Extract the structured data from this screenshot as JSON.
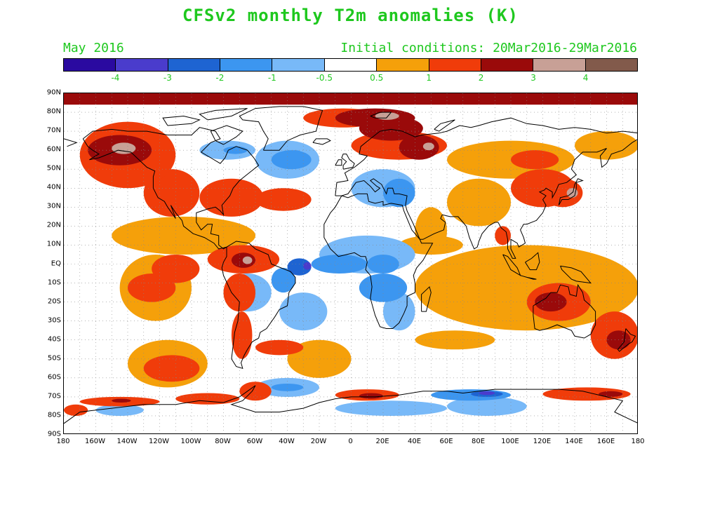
{
  "title": "CFSv2 monthly T2m anomalies (K)",
  "month": "May 2016",
  "initial_conditions": "Initial conditions: 20Mar2016-29Mar2016",
  "colorbar": {
    "colors": [
      "#2a0aa0",
      "#4a3ccc",
      "#1e64d2",
      "#3c96f0",
      "#78b9f8",
      "#ffffff",
      "#f5a00a",
      "#f03c0a",
      "#9a0a0a",
      "#c8a096",
      "#825a4b"
    ],
    "labels": [
      "-4",
      "-3",
      "-2",
      "-1",
      "-0.5",
      "0.5",
      "1",
      "2",
      "3",
      "4"
    ]
  },
  "lat_labels": [
    "90N",
    "80N",
    "70N",
    "60N",
    "50N",
    "40N",
    "30N",
    "20N",
    "10N",
    "EQ",
    "10S",
    "20S",
    "30S",
    "40S",
    "50S",
    "60S",
    "70S",
    "80S",
    "90S"
  ],
  "lon_labels": [
    "180",
    "160W",
    "140W",
    "120W",
    "100W",
    "80W",
    "60W",
    "40W",
    "20W",
    "0",
    "20E",
    "40E",
    "60E",
    "80E",
    "100E",
    "120E",
    "140E",
    "160E",
    "180"
  ],
  "anomaly_regions": [
    {
      "lon": [
        -180,
        180
      ],
      "lat": [
        84,
        90
      ],
      "v": 2.2
    },
    {
      "lon": [
        -170,
        -110
      ],
      "lat": [
        40,
        75
      ],
      "v": 1.5
    },
    {
      "lon": [
        -165,
        -125
      ],
      "lat": [
        52,
        68
      ],
      "v": 2.5
    },
    {
      "lon": [
        -150,
        -135
      ],
      "lat": [
        58,
        64
      ],
      "v": 3.3
    },
    {
      "lon": [
        -130,
        -95
      ],
      "lat": [
        25,
        50
      ],
      "v": 1.3
    },
    {
      "lon": [
        -95,
        -55
      ],
      "lat": [
        25,
        45
      ],
      "v": 1.5
    },
    {
      "lon": [
        -60,
        -25
      ],
      "lat": [
        28,
        40
      ],
      "v": 1.2
    },
    {
      "lon": [
        -150,
        -60
      ],
      "lat": [
        5,
        25
      ],
      "v": 0.8
    },
    {
      "lon": [
        -145,
        -100
      ],
      "lat": [
        -30,
        5
      ],
      "v": 0.8
    },
    {
      "lon": [
        -140,
        -110
      ],
      "lat": [
        -20,
        -5
      ],
      "v": 1.3
    },
    {
      "lon": [
        -125,
        -95
      ],
      "lat": [
        -10,
        5
      ],
      "v": 1.5
    },
    {
      "lon": [
        -90,
        -45
      ],
      "lat": [
        -5,
        10
      ],
      "v": 1.4
    },
    {
      "lon": [
        -75,
        -60
      ],
      "lat": [
        -2,
        6
      ],
      "v": 2.5
    },
    {
      "lon": [
        -68,
        -62
      ],
      "lat": [
        0,
        4
      ],
      "v": 3.2
    },
    {
      "lon": [
        -80,
        -60
      ],
      "lat": [
        -25,
        -5
      ],
      "v": 1.0
    },
    {
      "lon": [
        -75,
        -62
      ],
      "lat": [
        -50,
        -25
      ],
      "v": 1.6
    },
    {
      "lon": [
        -140,
        -90
      ],
      "lat": [
        -65,
        -40
      ],
      "v": 0.8
    },
    {
      "lon": [
        -130,
        -95
      ],
      "lat": [
        -62,
        -48
      ],
      "v": 1.4
    },
    {
      "lon": [
        -170,
        -120
      ],
      "lat": [
        -75,
        -70
      ],
      "v": 1.6
    },
    {
      "lon": [
        -150,
        -138
      ],
      "lat": [
        -73,
        -71
      ],
      "v": 2.5
    },
    {
      "lon": [
        -60,
        -30
      ],
      "lat": [
        -48,
        -40
      ],
      "v": 1.3
    },
    {
      "lon": [
        -110,
        -70
      ],
      "lat": [
        -74,
        -68
      ],
      "v": 1.3
    },
    {
      "lon": [
        -70,
        -50
      ],
      "lat": [
        -72,
        -62
      ],
      "v": 1.2
    },
    {
      "lon": [
        -30,
        20
      ],
      "lat": [
        72,
        82
      ],
      "v": 1.2
    },
    {
      "lon": [
        -10,
        40
      ],
      "lat": [
        72,
        82
      ],
      "v": 2.0
    },
    {
      "lon": [
        5,
        45
      ],
      "lat": [
        65,
        78
      ],
      "v": 2.0
    },
    {
      "lon": [
        15,
        30
      ],
      "lat": [
        76,
        80
      ],
      "v": 3.1
    },
    {
      "lon": [
        0,
        60
      ],
      "lat": [
        55,
        70
      ],
      "v": 1.0
    },
    {
      "lon": [
        30,
        55
      ],
      "lat": [
        55,
        68
      ],
      "v": 2.2
    },
    {
      "lon": [
        45,
        52
      ],
      "lat": [
        60,
        64
      ],
      "v": 3.1
    },
    {
      "lon": [
        -80,
        -50
      ],
      "lat": [
        -25,
        -5
      ],
      "v": -0.8
    },
    {
      "lon": [
        -50,
        -35
      ],
      "lat": [
        -15,
        -2
      ],
      "v": -1.2
    },
    {
      "lon": [
        -40,
        -25
      ],
      "lat": [
        -6,
        3
      ],
      "v": -2.2
    },
    {
      "lon": [
        -30,
        -25
      ],
      "lat": [
        -3,
        1
      ],
      "v": -3.3
    },
    {
      "lon": [
        -25,
        10
      ],
      "lat": [
        -5,
        5
      ],
      "v": -1.2
    },
    {
      "lon": [
        -15,
        0
      ],
      "lat": [
        -3,
        3
      ],
      "v": -2.0
    },
    {
      "lon": [
        -45,
        -15
      ],
      "lat": [
        -35,
        -15
      ],
      "v": -0.6
    },
    {
      "lon": [
        -20,
        40
      ],
      "lat": [
        -5,
        15
      ],
      "v": -1.0
    },
    {
      "lon": [
        10,
        30
      ],
      "lat": [
        -5,
        5
      ],
      "v": -1.4
    },
    {
      "lon": [
        5,
        35
      ],
      "lat": [
        -20,
        -5
      ],
      "v": -1.2
    },
    {
      "lon": [
        15,
        30
      ],
      "lat": [
        -15,
        -8
      ],
      "v": -1.7
    },
    {
      "lon": [
        20,
        40
      ],
      "lat": [
        -35,
        -15
      ],
      "v": -0.7
    },
    {
      "lon": [
        -60,
        -20
      ],
      "lat": [
        45,
        65
      ],
      "v": -0.8
    },
    {
      "lon": [
        -50,
        -25
      ],
      "lat": [
        50,
        60
      ],
      "v": -1.2
    },
    {
      "lon": [
        -40,
        -30
      ],
      "lat": [
        55,
        60
      ],
      "v": -1.8
    },
    {
      "lon": [
        -95,
        -60
      ],
      "lat": [
        55,
        65
      ],
      "v": -0.8
    },
    {
      "lon": [
        -80,
        -65
      ],
      "lat": [
        58,
        62
      ],
      "v": -1.2
    },
    {
      "lon": [
        0,
        40
      ],
      "lat": [
        30,
        50
      ],
      "v": -0.6
    },
    {
      "lon": [
        20,
        40
      ],
      "lat": [
        30,
        45
      ],
      "v": -1.1
    },
    {
      "lon": [
        40,
        60
      ],
      "lat": [
        5,
        30
      ],
      "v": 0.9
    },
    {
      "lon": [
        60,
        100
      ],
      "lat": [
        20,
        45
      ],
      "v": 0.8
    },
    {
      "lon": [
        90,
        100
      ],
      "lat": [
        10,
        20
      ],
      "v": 1.3
    },
    {
      "lon": [
        100,
        140
      ],
      "lat": [
        30,
        50
      ],
      "v": 1.0
    },
    {
      "lon": [
        120,
        145
      ],
      "lat": [
        30,
        45
      ],
      "v": 1.6
    },
    {
      "lon": [
        135,
        142
      ],
      "lat": [
        35,
        40
      ],
      "v": 3.1
    },
    {
      "lon": [
        60,
        140
      ],
      "lat": [
        45,
        65
      ],
      "v": 0.8
    },
    {
      "lon": [
        100,
        130
      ],
      "lat": [
        50,
        60
      ],
      "v": 1.3
    },
    {
      "lon": [
        140,
        180
      ],
      "lat": [
        55,
        70
      ],
      "v": 0.8
    },
    {
      "lon": [
        40,
        180
      ],
      "lat": [
        -35,
        10
      ],
      "v": 0.8
    },
    {
      "lon": [
        110,
        150
      ],
      "lat": [
        -30,
        -10
      ],
      "v": 1.4
    },
    {
      "lon": [
        115,
        135
      ],
      "lat": [
        -25,
        -15
      ],
      "v": 2.2
    },
    {
      "lon": [
        150,
        180
      ],
      "lat": [
        -50,
        -25
      ],
      "v": 1.3
    },
    {
      "lon": [
        160,
        175
      ],
      "lat": [
        -45,
        -35
      ],
      "v": 2.2
    },
    {
      "lon": [
        40,
        90
      ],
      "lat": [
        -45,
        -35
      ],
      "v": 0.8
    },
    {
      "lon": [
        -40,
        0
      ],
      "lat": [
        -60,
        -40
      ],
      "v": 0.7
    },
    {
      "lon": [
        -10,
        30
      ],
      "lat": [
        -72,
        -66
      ],
      "v": 1.3
    },
    {
      "lon": [
        5,
        20
      ],
      "lat": [
        -71,
        -68
      ],
      "v": 2.5
    },
    {
      "lon": [
        -10,
        60
      ],
      "lat": [
        -80,
        -72
      ],
      "v": -0.6
    },
    {
      "lon": [
        60,
        110
      ],
      "lat": [
        -80,
        -70
      ],
      "v": -0.7
    },
    {
      "lon": [
        50,
        100
      ],
      "lat": [
        -72,
        -66
      ],
      "v": -1.4
    },
    {
      "lon": [
        75,
        95
      ],
      "lat": [
        -70,
        -67
      ],
      "v": -2.3
    },
    {
      "lon": [
        80,
        90
      ],
      "lat": [
        -69,
        -67
      ],
      "v": -3.2
    },
    {
      "lon": [
        -160,
        -130
      ],
      "lat": [
        -80,
        -74
      ],
      "v": -0.6
    },
    {
      "lon": [
        120,
        175
      ],
      "lat": [
        -72,
        -65
      ],
      "v": 1.2
    },
    {
      "lon": [
        155,
        170
      ],
      "lat": [
        -70,
        -67
      ],
      "v": 2.2
    },
    {
      "lon": [
        -60,
        -20
      ],
      "lat": [
        -70,
        -60
      ],
      "v": -0.7
    },
    {
      "lon": [
        -50,
        -30
      ],
      "lat": [
        -67,
        -63
      ],
      "v": -1.2
    },
    {
      "lon": [
        -180,
        -165
      ],
      "lat": [
        -80,
        -74
      ],
      "v": 1.2
    },
    {
      "lon": [
        30,
        70
      ],
      "lat": [
        5,
        15
      ],
      "v": 0.8
    }
  ]
}
